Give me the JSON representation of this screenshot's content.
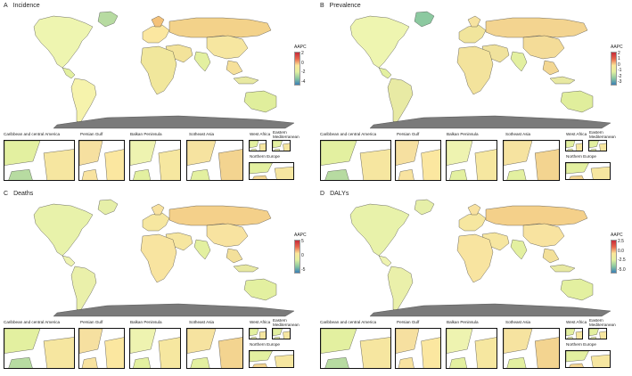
{
  "colors": {
    "sea": "#ffffff",
    "antarctica": "#7a7a7a",
    "border": "#333333",
    "scale": [
      "#3a7fb5",
      "#8cc9a0",
      "#e3f0a0",
      "#fbe79a",
      "#f6c07a",
      "#e8674c",
      "#c62b3a"
    ]
  },
  "panels": [
    {
      "letter": "A",
      "title": "Incidence",
      "legend": {
        "title": "AAPC",
        "ticks": [
          "2",
          "0",
          "-2",
          "-4"
        ]
      },
      "insets": [
        "Caribbean and central America",
        "Persian Gulf",
        "Balkan Peninsula",
        "Sotheast Asia",
        "West Africa",
        "Eastern Mediterranean",
        "Northern Europe"
      ]
    },
    {
      "letter": "B",
      "title": "Prevalence",
      "legend": {
        "title": "AAPC",
        "ticks": [
          "2",
          "1",
          "0",
          "-1",
          "-2",
          "-3"
        ]
      },
      "insets": [
        "Caribbean and central America",
        "Persian Gulf",
        "Balkan Peninsula",
        "Sotheast Asia",
        "West Africa",
        "Eastern Mediterranean",
        "Northern Europe"
      ]
    },
    {
      "letter": "C",
      "title": "Deaths",
      "legend": {
        "title": "AAPC",
        "ticks": [
          "5",
          "0",
          "-5"
        ]
      },
      "insets": [
        "Caribbean and central America",
        "Persian Gulf",
        "Balkan Peninsula",
        "Sotheast Asia",
        "West Africa",
        "Eastern Mediterranean",
        "Northern Europe"
      ]
    },
    {
      "letter": "D",
      "title": "DALYs",
      "legend": {
        "title": "AAPC",
        "ticks": [
          "2.5",
          "0.0",
          "-2.5",
          "-5.0"
        ]
      },
      "insets": [
        "Caribbean and central America",
        "Persian Gulf",
        "Balkan Peninsula",
        "Sotheast Asia",
        "West Africa",
        "Eastern Mediterranean",
        "Northern Europe"
      ]
    }
  ]
}
